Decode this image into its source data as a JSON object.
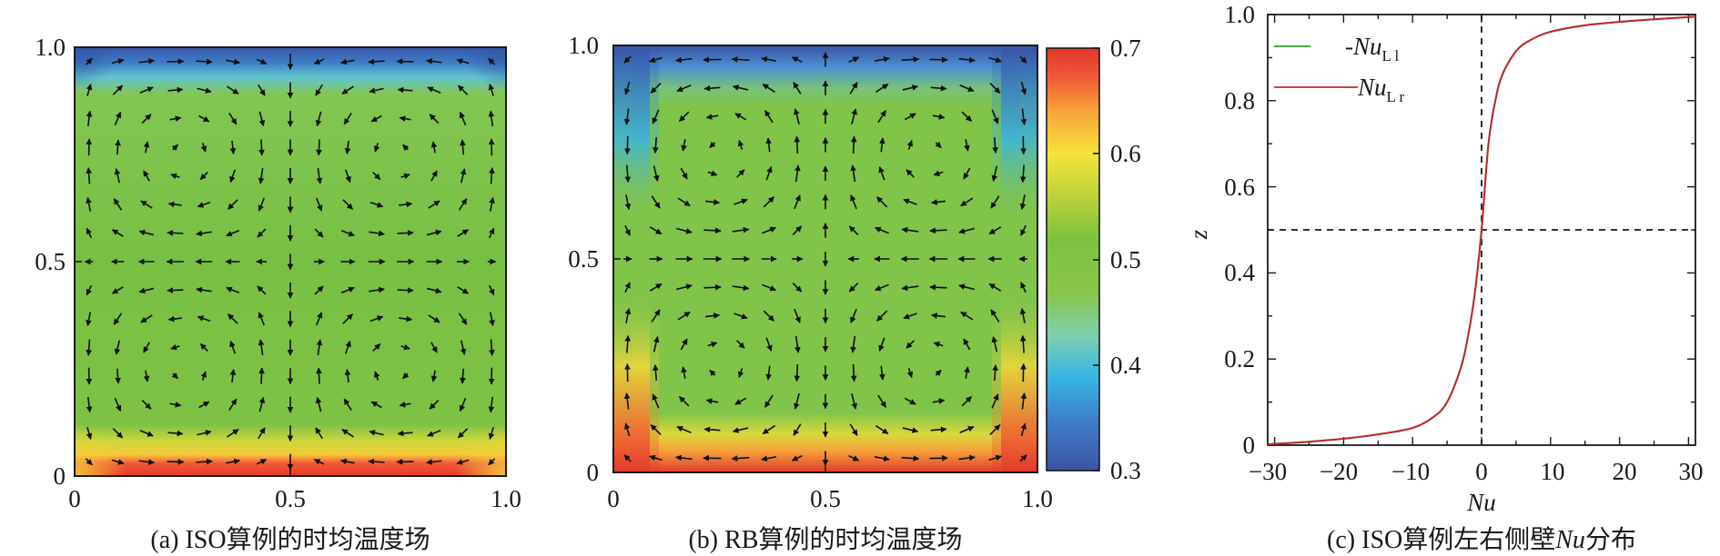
{
  "figure": {
    "colorbar": {
      "colormap": [
        "#3a53a4",
        "#3f8fd0",
        "#37c0e0",
        "#7fd3a8",
        "#8ac64a",
        "#6fbf44",
        "#7cc23f",
        "#c6d23a",
        "#f4e23c",
        "#f7a43a",
        "#ee4f36",
        "#e0362b"
      ],
      "range": [
        0.3,
        0.7
      ],
      "ticks": [
        "0.7",
        "0.6",
        "0.5",
        "0.4",
        "0.3"
      ]
    },
    "panels": [
      {
        "id": "a",
        "caption": "(a) ISO算例的时均温度场",
        "x_ticks": [
          "0",
          "0.5",
          "1.0"
        ],
        "y_ticks": [
          "1.0",
          "0.5",
          "0"
        ]
      },
      {
        "id": "b",
        "caption": "(b) RB算例的时均温度场",
        "x_ticks": [
          "0",
          "0.5",
          "1.0"
        ],
        "y_ticks": [
          "1.0",
          "0.5",
          "0"
        ]
      },
      {
        "id": "c",
        "caption_prefix": "(c) ISO算例左右侧壁",
        "caption_italic": "Nu",
        "caption_suffix": "分布",
        "xlabel": "Nu",
        "ylabel": "z",
        "x_ticks": [
          "−30",
          "−20",
          "−10",
          "0",
          "10",
          "20",
          "30"
        ],
        "y_ticks": [
          "1.0",
          "0.8",
          "0.6",
          "0.4",
          "0.2",
          "0"
        ],
        "legend": [
          {
            "prefix": "-",
            "main": "Nu",
            "sub": "L l",
            "color": "#2ca02c"
          },
          {
            "prefix": "",
            "main": "Nu",
            "sub": "L r",
            "color": "#c0282d"
          }
        ]
      }
    ],
    "chart_data": {
      "type": "line",
      "title": "(c) ISO算例左右侧壁Nu分布",
      "xlabel": "Nu",
      "ylabel": "z",
      "xlim": [
        -31,
        31
      ],
      "ylim": [
        0,
        1
      ],
      "reference_lines": {
        "x": 0,
        "y": 0.5
      },
      "series": [
        {
          "name": "-Nu_L l",
          "color": "#2ca02c",
          "x": [
            -31,
            -25,
            -20,
            -15,
            -10,
            -7,
            -5,
            -3,
            -2,
            -1,
            0,
            1,
            2,
            3,
            5,
            7,
            10,
            15,
            20,
            25,
            31
          ],
          "y": [
            0.002,
            0.008,
            0.015,
            0.025,
            0.04,
            0.065,
            0.1,
            0.18,
            0.25,
            0.35,
            0.5,
            0.7,
            0.8,
            0.86,
            0.915,
            0.94,
            0.96,
            0.975,
            0.983,
            0.989,
            0.995
          ]
        },
        {
          "name": "Nu_L r",
          "color": "#c0282d",
          "x": [
            -31,
            -25,
            -20,
            -15,
            -10,
            -7,
            -5,
            -3,
            -2,
            -1,
            0,
            1,
            2,
            3,
            5,
            7,
            10,
            15,
            20,
            25,
            31
          ],
          "y": [
            0.002,
            0.008,
            0.015,
            0.025,
            0.04,
            0.065,
            0.1,
            0.18,
            0.25,
            0.35,
            0.5,
            0.7,
            0.8,
            0.86,
            0.915,
            0.94,
            0.96,
            0.975,
            0.983,
            0.989,
            0.995
          ]
        }
      ]
    }
  }
}
